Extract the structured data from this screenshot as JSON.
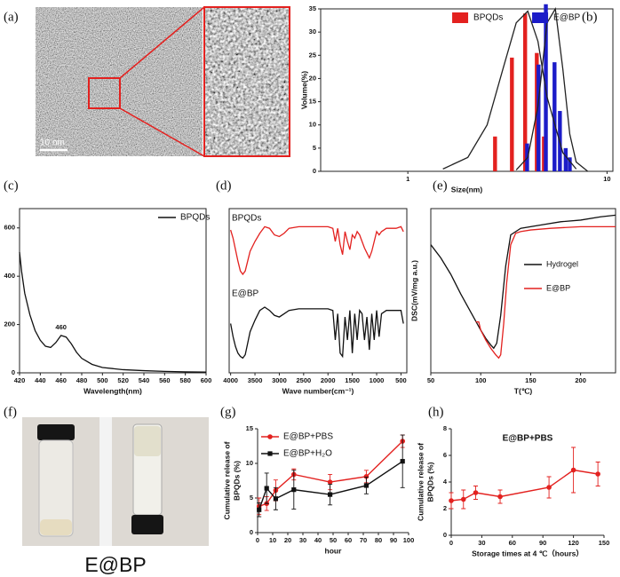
{
  "images": [
    {
      "panel": "(a)",
      "scale_bar": "10 nm"
    },
    {
      "panel": "(f)",
      "caption": "E@BP"
    }
  ],
  "chart_data": [
    {
      "type": "bar",
      "panel": "(b)",
      "xlabel": "Size(nm)",
      "ylabel": "Volume(%)",
      "xlog": true,
      "xlim": [
        0.365,
        10.7
      ],
      "xticks": [
        1,
        10
      ],
      "ylim": [
        0,
        35
      ],
      "yticks": [
        0,
        5,
        10,
        15,
        20,
        25,
        30,
        35
      ],
      "frame": "box",
      "legend": "top",
      "series": [
        {
          "name": "BPQDs",
          "color": "#e3211f",
          "x": [
            2.74,
            3.33,
            3.88,
            4.44,
            4.82
          ],
          "values": [
            7.5,
            24.5,
            34,
            25.5,
            7.5
          ]
        },
        {
          "name": "E@BP",
          "color": "#1c1cc8",
          "x": [
            3.97,
            4.53,
            4.93,
            5.45,
            5.8,
            6.2,
            6.5
          ],
          "values": [
            6,
            23,
            36,
            23.5,
            13,
            5,
            3
          ]
        },
        {
          "style": "line",
          "color": "#222",
          "x": [
            1.5,
            2,
            2.5,
            3,
            3.5,
            4,
            4.5,
            5,
            6,
            7
          ],
          "values": [
            0.5,
            3,
            10,
            22,
            32,
            34.5,
            28,
            16,
            4,
            0.5
          ]
        },
        {
          "style": "line",
          "color": "#222",
          "x": [
            3.5,
            4,
            4.5,
            5,
            5.5,
            6,
            6.5,
            7,
            8
          ],
          "values": [
            0.3,
            3,
            14,
            32,
            35,
            22,
            8,
            2,
            0
          ]
        }
      ]
    },
    {
      "type": "line",
      "panel": "(c)",
      "xlabel": "Wavelength(nm)",
      "xlim": [
        420,
        600
      ],
      "xticks": [
        420,
        440,
        460,
        480,
        500,
        520,
        540,
        560,
        580,
        600
      ],
      "ylim": [
        0,
        680
      ],
      "yticks": [
        0,
        200,
        400,
        600
      ],
      "frame": "box",
      "legend": "top-right",
      "x": [
        420,
        422,
        425,
        430,
        435,
        440,
        445,
        450,
        455,
        460,
        465,
        470,
        475,
        480,
        490,
        500,
        520,
        540,
        560,
        580,
        600
      ],
      "series": [
        {
          "name": "BPQDs",
          "color": "#111",
          "values": [
            500,
            420,
            330,
            240,
            175,
            135,
            110,
            105,
            125,
            155,
            148,
            120,
            85,
            60,
            35,
            22,
            13,
            9,
            6,
            4,
            3
          ]
        }
      ],
      "annotations": [
        {
          "value": 460,
          "label": "460"
        }
      ]
    },
    {
      "type": "line",
      "panel": "(d)",
      "xlabel": "Wave number(cm⁻¹)",
      "xlim": [
        4030,
        380
      ],
      "xticks": [
        4000,
        3500,
        3000,
        2500,
        2000,
        1500,
        1000,
        500
      ],
      "ylim": [
        0,
        100
      ],
      "frame": "box",
      "legend": "inline",
      "x": [
        4000,
        3950,
        3900,
        3850,
        3800,
        3750,
        3700,
        3650,
        3600,
        3500,
        3400,
        3300,
        3200,
        3100,
        3000,
        2900,
        2800,
        2600,
        2400,
        2200,
        2000,
        1900,
        1850,
        1800,
        1750,
        1700,
        1650,
        1600,
        1550,
        1500,
        1450,
        1400,
        1350,
        1300,
        1250,
        1200,
        1150,
        1100,
        1050,
        1000,
        950,
        900,
        850,
        800,
        700,
        600,
        500,
        450
      ],
      "series": [
        {
          "name": "BPQDs",
          "color": "#e3211f",
          "values": [
            87,
            82,
            75,
            68,
            62,
            60,
            62,
            68,
            74,
            80,
            85,
            89,
            88,
            84,
            83,
            85,
            88,
            89,
            89,
            89,
            89,
            88,
            80,
            88,
            78,
            72,
            86,
            80,
            75,
            84,
            82,
            86,
            84,
            80,
            76,
            73,
            70,
            74,
            80,
            86,
            84,
            86,
            87,
            88,
            88,
            88,
            89,
            86
          ]
        },
        {
          "name": "E@BP",
          "color": "#111",
          "values": [
            30,
            22,
            16,
            12,
            10,
            9,
            11,
            18,
            25,
            32,
            38,
            40,
            38,
            35,
            34,
            36,
            38,
            39,
            39,
            39,
            39,
            38,
            20,
            36,
            12,
            10,
            34,
            20,
            38,
            12,
            36,
            20,
            38,
            36,
            20,
            34,
            14,
            36,
            20,
            38,
            22,
            36,
            37,
            38,
            38,
            38,
            38,
            30
          ]
        }
      ]
    },
    {
      "type": "line",
      "panel": "(e)",
      "xlabel": "T(℃)",
      "ylabel": "DSC(mV/mg a.u.)",
      "xlim": [
        50,
        235
      ],
      "xticks": [
        50,
        100,
        150,
        200
      ],
      "ylim": [
        0,
        100
      ],
      "frame": "box",
      "legend": "center-right",
      "series": [
        {
          "name": "Hydrogel",
          "color": "#111",
          "x": [
            50,
            60,
            70,
            80,
            90,
            100,
            105,
            110,
            113,
            116,
            120,
            125,
            130,
            140,
            160,
            180,
            200,
            220,
            235
          ],
          "values": [
            78,
            70,
            60,
            48,
            37,
            26,
            21,
            17,
            15,
            18,
            35,
            65,
            84,
            88,
            90,
            92,
            93,
            95,
            96
          ]
        },
        {
          "name": "E@BP",
          "color": "#e3211f",
          "x": [
            95,
            98,
            100,
            105,
            110,
            115,
            118,
            120,
            123,
            126,
            130,
            135,
            140,
            150,
            170,
            200,
            235
          ],
          "values": [
            31,
            31,
            26,
            20,
            15,
            11,
            9,
            11,
            30,
            55,
            78,
            85,
            86,
            87,
            88,
            89,
            89
          ]
        }
      ]
    },
    {
      "type": "line",
      "panel": "(g)",
      "xlabel": "hour",
      "ylabel": [
        "Cumulative release of",
        "BPQDs (%)"
      ],
      "xlim": [
        0,
        100
      ],
      "xticks": [
        0,
        10,
        20,
        30,
        40,
        50,
        60,
        70,
        80,
        90,
        100
      ],
      "ylim": [
        0,
        15
      ],
      "yticks": [
        0,
        5,
        10,
        15
      ],
      "frame": "axes",
      "legend": "top-left",
      "x": [
        1,
        6,
        12,
        24,
        48,
        72,
        96
      ],
      "series": [
        {
          "name": "E@BP+PBS",
          "color": "#e3211f",
          "marker": "circle",
          "values": [
            3.8,
            4.2,
            6.1,
            8.4,
            7.3,
            8.1,
            13.2
          ],
          "errors": [
            1.2,
            1.0,
            1.5,
            0.8,
            1.1,
            0.9,
            0.9
          ]
        },
        {
          "name": "E@BP+H₂O",
          "color": "#111",
          "marker": "square",
          "values": [
            3.3,
            6.4,
            4.9,
            6.2,
            5.5,
            6.8,
            10.3
          ],
          "errors": [
            1.0,
            2.2,
            1.6,
            2.8,
            1.5,
            1.2,
            3.8
          ]
        }
      ]
    },
    {
      "type": "line",
      "panel": "(h)",
      "title": "E@BP+PBS",
      "xlabel": "Storage times at 4 ℃（hours）",
      "ylabel": [
        "Cumulative release of",
        "BPQDs (%)"
      ],
      "xlim": [
        0,
        150
      ],
      "xticks": [
        0,
        30,
        60,
        90,
        120,
        150
      ],
      "ylim": [
        0,
        8
      ],
      "yticks": [
        0,
        2,
        4,
        6,
        8
      ],
      "frame": "axes",
      "x": [
        0,
        12,
        24,
        48,
        96,
        120,
        144
      ],
      "series": [
        {
          "color": "#e3211f",
          "marker": "circle",
          "values": [
            2.6,
            2.7,
            3.2,
            2.9,
            3.6,
            4.9,
            4.6
          ],
          "errors": [
            0.6,
            0.7,
            0.5,
            0.5,
            0.8,
            1.7,
            0.9
          ]
        }
      ]
    }
  ]
}
